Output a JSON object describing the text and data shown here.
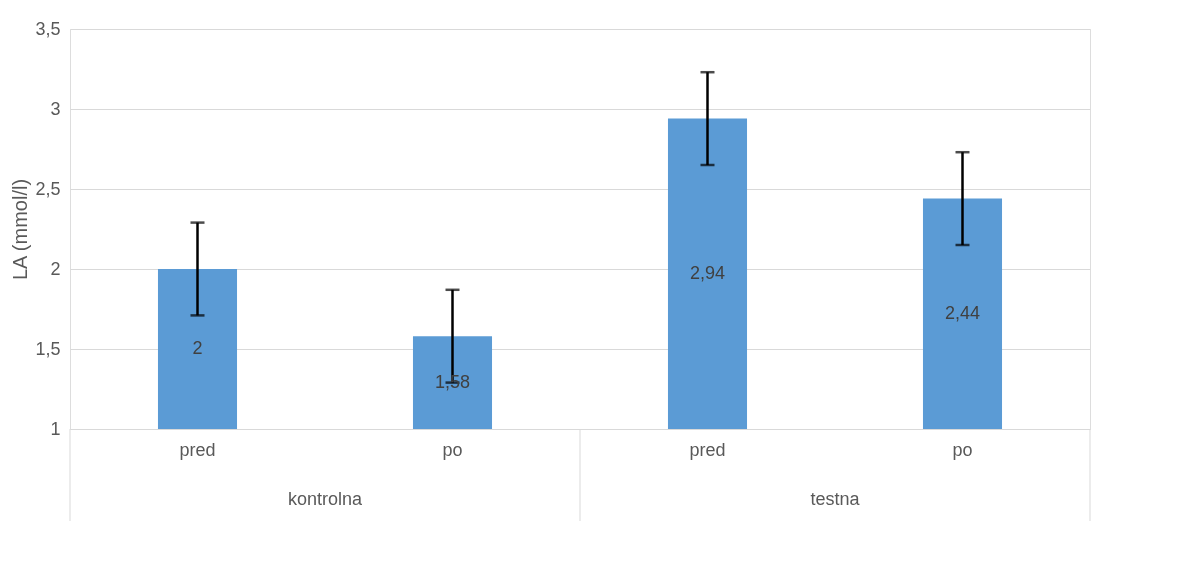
{
  "chart_data": {
    "type": "bar",
    "ylabel": "LA (mmol/l)",
    "categories": [
      "pred",
      "po",
      "pred",
      "po"
    ],
    "values": [
      2,
      1.58,
      2.94,
      2.44
    ],
    "color": "#5b9bd5",
    "errors": [
      0.29,
      0.29,
      0.29,
      0.29
    ],
    "value_labels": [
      "2",
      "1,58",
      "2,94",
      "2,44"
    ],
    "ylim": [
      1,
      3.5
    ],
    "yticks": [
      1,
      {
        "value": 1.5,
        "label": "1,5"
      },
      2,
      {
        "value": 2.5,
        "label": "2,5"
      },
      3,
      {
        "value": 3.5,
        "label": "3,5"
      }
    ],
    "grid": "y",
    "annotations": [
      "kontrolna",
      "testna"
    ]
  }
}
